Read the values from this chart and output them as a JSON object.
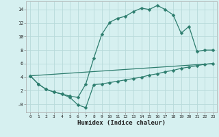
{
  "line1_x": [
    0,
    1,
    2,
    3,
    4,
    5,
    6,
    7,
    8,
    9,
    10,
    11,
    12,
    13,
    14,
    15,
    16,
    17,
    18,
    19,
    20,
    21,
    22,
    23
  ],
  "line1_y": [
    4.2,
    3.0,
    2.2,
    1.8,
    1.5,
    1.2,
    1.0,
    3.0,
    6.8,
    10.3,
    12.1,
    12.7,
    13.0,
    13.7,
    14.2,
    14.0,
    14.6,
    14.0,
    13.2,
    10.5,
    11.5,
    7.8,
    8.0,
    8.0
  ],
  "line2_x": [
    0,
    23
  ],
  "line2_y": [
    4.2,
    6.0
  ],
  "line3_x": [
    0,
    1,
    2,
    3,
    4,
    5,
    6,
    7,
    8,
    9,
    10,
    11,
    12,
    13,
    14,
    15,
    16,
    17,
    18,
    19,
    20,
    21,
    22,
    23
  ],
  "line3_y": [
    4.2,
    3.0,
    2.2,
    1.8,
    1.5,
    1.0,
    -0.1,
    -0.5,
    2.9,
    3.0,
    3.2,
    3.4,
    3.6,
    3.8,
    4.0,
    4.3,
    4.5,
    4.8,
    5.0,
    5.3,
    5.5,
    5.7,
    5.9,
    6.0
  ],
  "color": "#2d7d6e",
  "bg_color": "#d6f0f0",
  "grid_color": "#b8dada",
  "xlabel": "Humidex (Indice chaleur)",
  "xlim": [
    -0.5,
    23.5
  ],
  "ylim": [
    -1.2,
    15.2
  ],
  "yticks": [
    0,
    2,
    4,
    6,
    8,
    10,
    12,
    14
  ],
  "ytick_labels": [
    "-0",
    "2",
    "4",
    "6",
    "8",
    "10",
    "12",
    "14"
  ],
  "xticks": [
    0,
    1,
    2,
    3,
    4,
    5,
    6,
    7,
    8,
    9,
    10,
    11,
    12,
    13,
    14,
    15,
    16,
    17,
    18,
    19,
    20,
    21,
    22,
    23
  ],
  "marker": "D",
  "markersize": 2.5,
  "linewidth": 0.9
}
